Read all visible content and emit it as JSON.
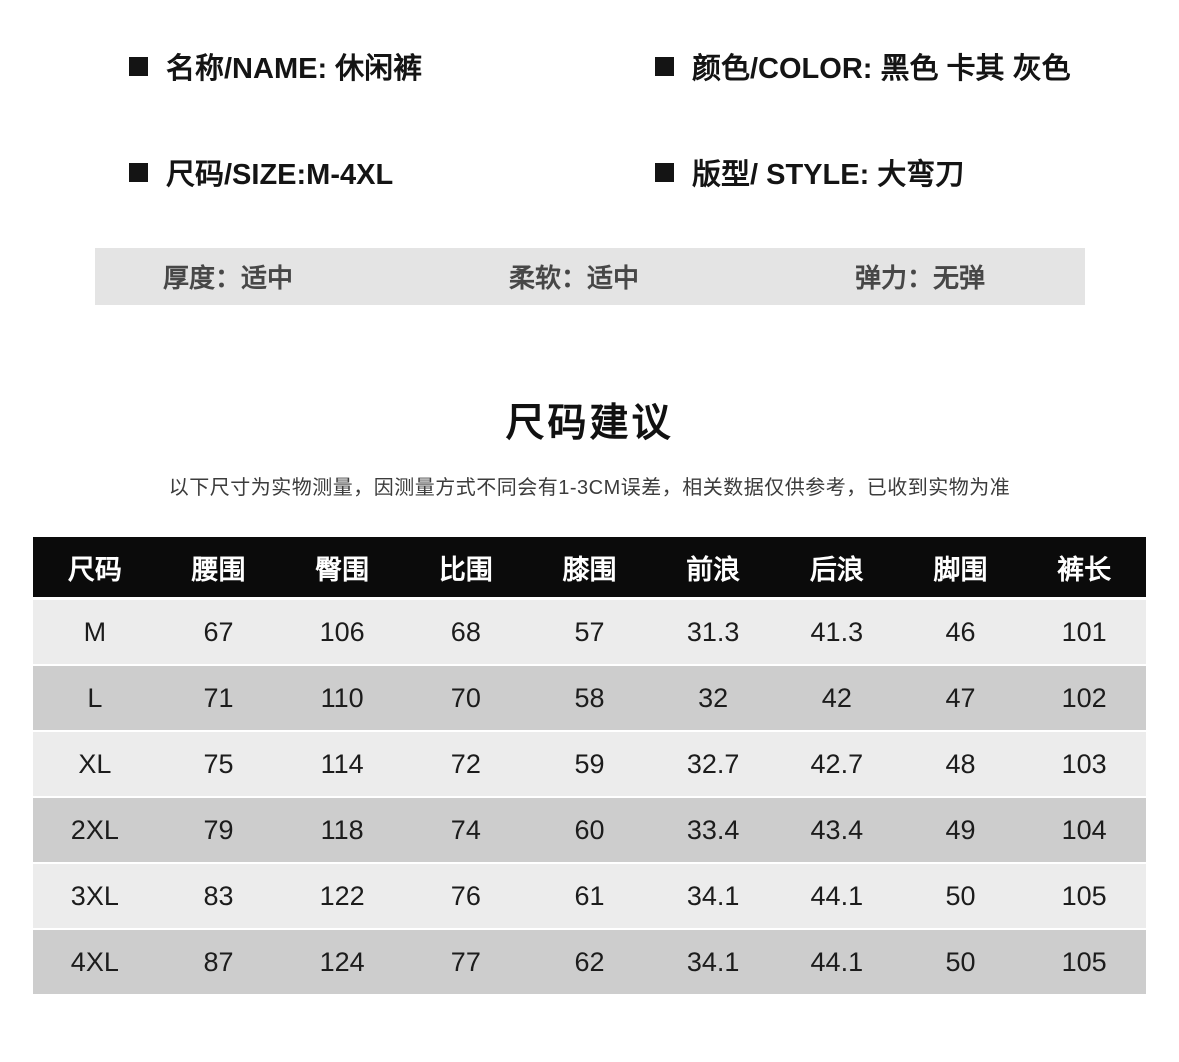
{
  "colors": {
    "table_header_bg": "#0b0b0b",
    "table_row_light": "#ececec",
    "table_row_dark": "#cdcdcd",
    "attribute_bar_bg": "#e4e4e4",
    "text_primary": "#141414"
  },
  "specs": {
    "name": "名称/NAME: 休闲裤",
    "color": "颜色/COLOR: 黑色 卡其 灰色",
    "size": "尺码/SIZE:M-4XL",
    "style": "版型/ STYLE: 大弯刀"
  },
  "attributes": {
    "thickness": "厚度：适中",
    "softness": "柔软：适中",
    "elasticity": "弹力：无弹"
  },
  "size_guide": {
    "title": "尺码建议",
    "note": "以下尺寸为实物测量，因测量方式不同会有1-3CM误差，相关数据仅供参考，已收到实物为准"
  },
  "size_table": {
    "headers": [
      "尺码",
      "腰围",
      "臀围",
      "比围",
      "膝围",
      "前浪",
      "后浪",
      "脚围",
      "裤长"
    ],
    "rows": [
      [
        "M",
        "67",
        "106",
        "68",
        "57",
        "31.3",
        "41.3",
        "46",
        "101"
      ],
      [
        "L",
        "71",
        "110",
        "70",
        "58",
        "32",
        "42",
        "47",
        "102"
      ],
      [
        "XL",
        "75",
        "114",
        "72",
        "59",
        "32.7",
        "42.7",
        "48",
        "103"
      ],
      [
        "2XL",
        "79",
        "118",
        "74",
        "60",
        "33.4",
        "43.4",
        "49",
        "104"
      ],
      [
        "3XL",
        "83",
        "122",
        "76",
        "61",
        "34.1",
        "44.1",
        "50",
        "105"
      ],
      [
        "4XL",
        "87",
        "124",
        "77",
        "62",
        "34.1",
        "44.1",
        "50",
        "105"
      ]
    ]
  }
}
